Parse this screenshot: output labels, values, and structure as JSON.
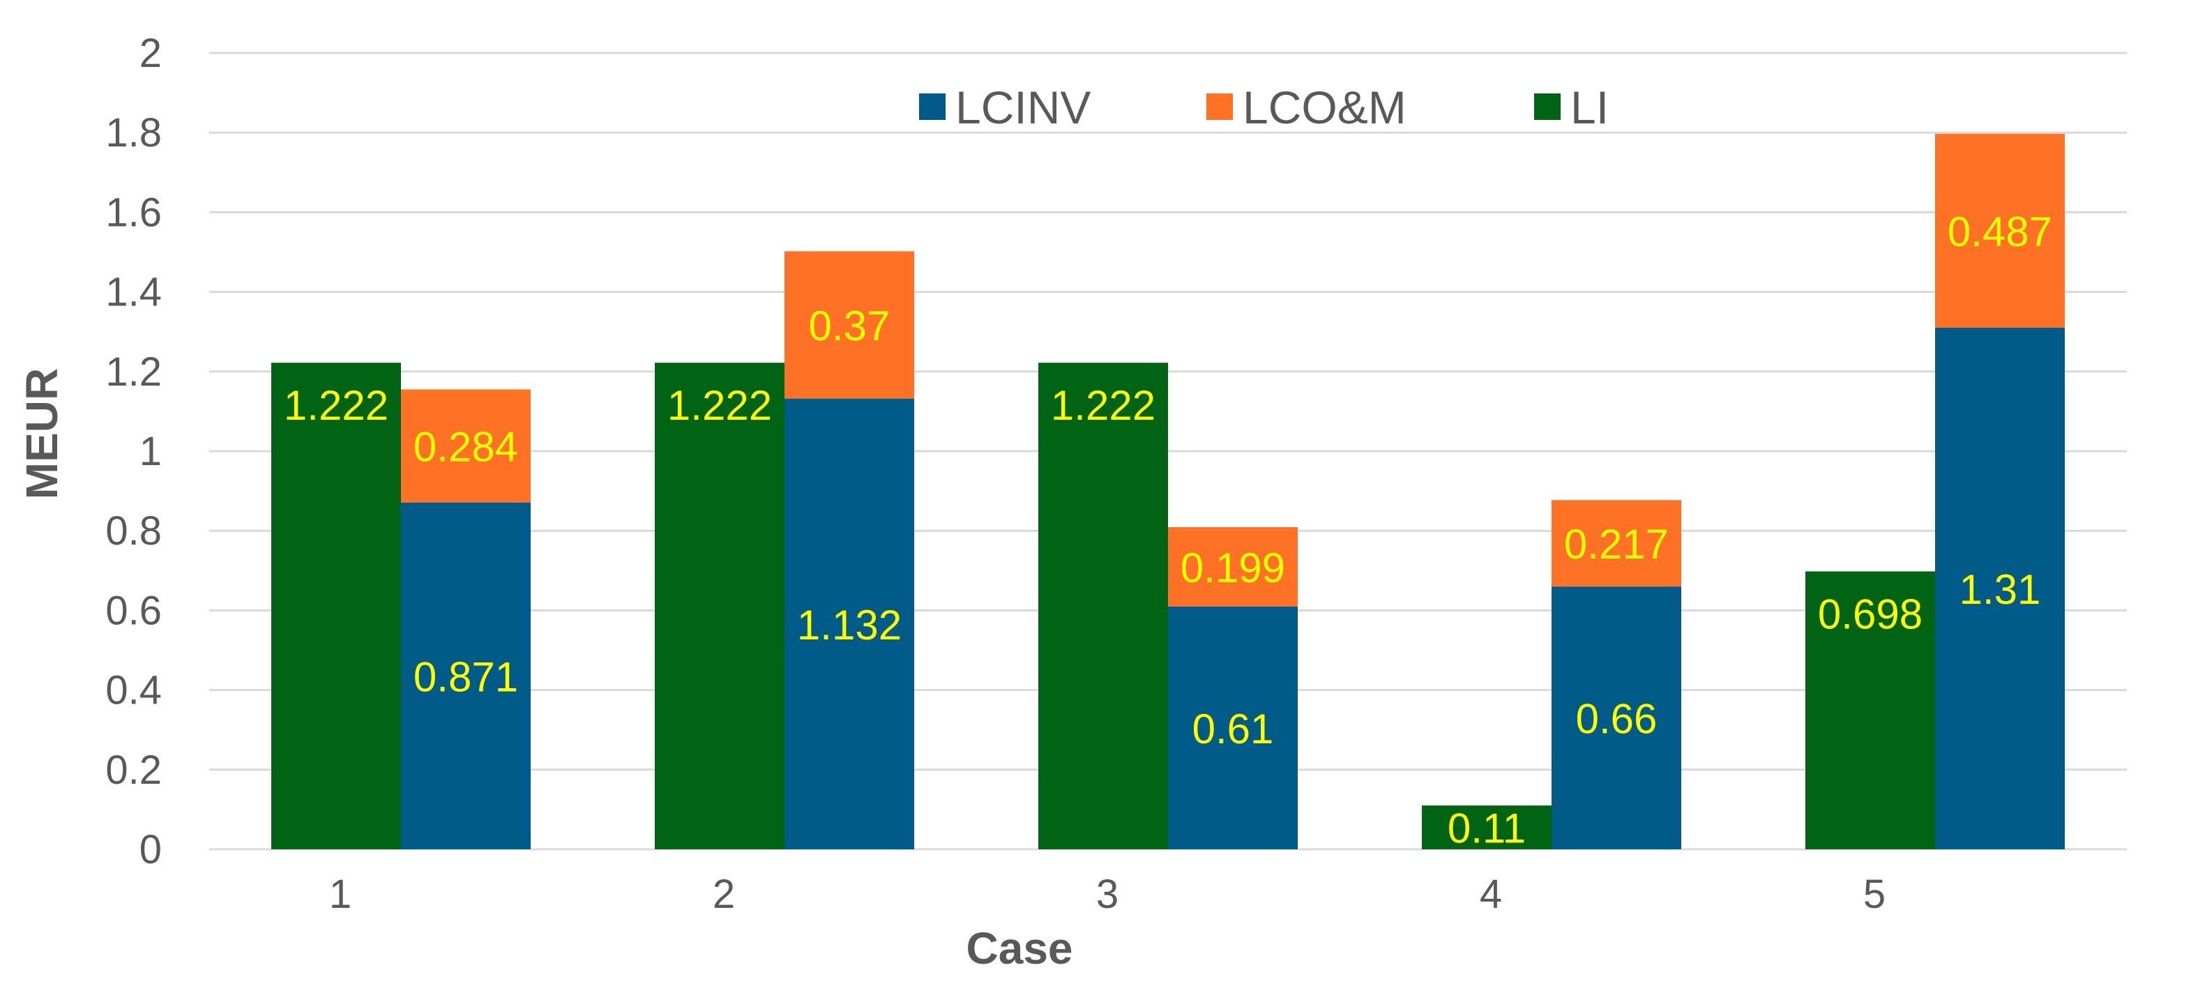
{
  "chart_data": {
    "type": "bar",
    "title": "",
    "xlabel": "Case",
    "ylabel": "MEUR",
    "ylim": [
      0,
      2
    ],
    "yticks": [
      "0",
      "0.2",
      "0.4",
      "0.6",
      "0.8",
      "1",
      "1.2",
      "1.4",
      "1.6",
      "1.8",
      "2"
    ],
    "categories": [
      "1",
      "2",
      "3",
      "4",
      "5"
    ],
    "legend_position": "top-center",
    "grid": true,
    "label_color": "#ffff00",
    "series": [
      {
        "name": "LCINV",
        "stack": "LC",
        "color": "#005b89",
        "values": [
          0.871,
          1.132,
          0.61,
          0.66,
          1.31
        ],
        "labels": [
          "0.871",
          "1.132",
          "0.61",
          "0.66",
          "1.31"
        ]
      },
      {
        "name": "LCO&M",
        "stack": "LC",
        "color": "#ff7225",
        "values": [
          0.284,
          0.37,
          0.199,
          0.217,
          0.487
        ],
        "labels": [
          "0.284",
          "0.37",
          "0.199",
          "0.217",
          "0.487"
        ]
      },
      {
        "name": "LI",
        "stack": "LI",
        "color": "#006414",
        "values": [
          1.222,
          1.222,
          1.222,
          0.11,
          0.698
        ],
        "labels": [
          "1.222",
          "1.222",
          "1.222",
          "0.11",
          "0.698"
        ]
      }
    ],
    "legend": [
      {
        "name": "LCINV",
        "color": "#005b89"
      },
      {
        "name": "LCO&M",
        "color": "#ff7225"
      },
      {
        "name": "LI",
        "color": "#006414"
      }
    ]
  }
}
